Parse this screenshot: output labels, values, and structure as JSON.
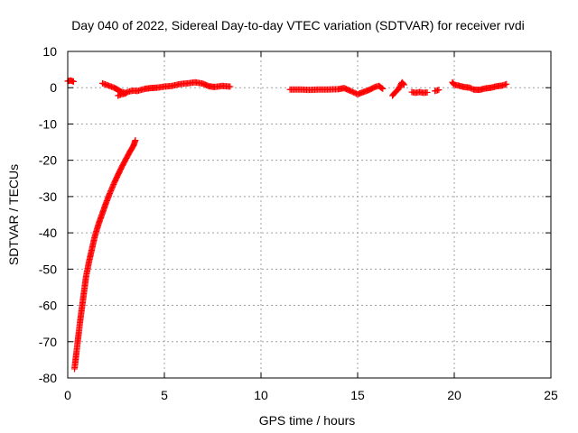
{
  "chart_data": {
    "type": "scatter",
    "title": "Day 040 of 2022, Sidereal Day-to-day VTEC variation (SDTVAR) for receiver rvdi",
    "xlabel": "GPS time / hours",
    "ylabel": "SDTVAR / TECUs",
    "xlim": [
      0,
      25
    ],
    "ylim": [
      -80,
      10
    ],
    "xticks": [
      0,
      5,
      10,
      15,
      20,
      25
    ],
    "yticks": [
      -80,
      -70,
      -60,
      -50,
      -40,
      -30,
      -20,
      -10,
      0,
      10
    ],
    "grid": true,
    "marker": "+",
    "series_color": "#ff0000",
    "segments": [
      {
        "x": [
          0.0,
          0.15,
          0.3
        ],
        "y": [
          1.8,
          2.0,
          1.7
        ]
      },
      {
        "x": [
          0.35,
          0.45,
          0.55,
          0.65,
          0.75,
          0.85,
          0.95,
          1.1,
          1.25,
          1.4,
          1.6,
          1.8,
          2.0,
          2.2,
          2.4,
          2.6,
          2.8,
          3.0,
          3.2,
          3.4,
          3.5
        ],
        "y": [
          -77.5,
          -73,
          -68.5,
          -64,
          -60,
          -56,
          -52,
          -48,
          -44.5,
          -41,
          -37.5,
          -34.5,
          -31.5,
          -28.8,
          -26.3,
          -24,
          -21.8,
          -19.8,
          -17.8,
          -16,
          -14.5
        ]
      },
      {
        "x": [
          1.8,
          2.0,
          2.2,
          2.4,
          2.6,
          2.8,
          3.0,
          3.2,
          3.4,
          3.6,
          3.8,
          4.0,
          4.3,
          4.6,
          5.0,
          5.4,
          5.8,
          6.2,
          6.6,
          7.0,
          7.3,
          7.6,
          8.0,
          8.4
        ],
        "y": [
          1.2,
          0.8,
          0.4,
          0.0,
          -0.6,
          -1.2,
          -1.4,
          -1.0,
          -0.8,
          -0.9,
          -0.6,
          -0.3,
          -0.1,
          0.0,
          0.3,
          0.5,
          1.0,
          1.2,
          1.5,
          1.1,
          0.4,
          0.2,
          0.5,
          0.3
        ]
      },
      {
        "x": [
          2.6,
          2.8,
          3.0
        ],
        "y": [
          -2.2,
          -1.8,
          -1.6
        ]
      },
      {
        "x": [
          11.5,
          12.0,
          12.5,
          13.0,
          13.5,
          14.0,
          14.3,
          14.6,
          15.0,
          15.3,
          15.6,
          15.9,
          16.1,
          16.3
        ],
        "y": [
          -0.5,
          -0.5,
          -0.6,
          -0.5,
          -0.5,
          -0.4,
          -0.1,
          -0.8,
          -1.8,
          -1.2,
          -0.6,
          0.2,
          0.5,
          -0.3
        ]
      },
      {
        "x": [
          16.8,
          16.95,
          17.1,
          17.3,
          17.4
        ],
        "y": [
          -2.2,
          -1.2,
          -0.5,
          1.5,
          0.8
        ]
      },
      {
        "x": [
          17.8,
          18.0,
          18.2,
          18.4,
          18.6
        ],
        "y": [
          -1.2,
          -1.4,
          -1.2,
          -1.4,
          -1.3
        ]
      },
      {
        "x": [
          19.0,
          19.2
        ],
        "y": [
          -0.9,
          -0.6
        ]
      },
      {
        "x": [
          19.9,
          20.0,
          20.2,
          20.5,
          20.8,
          21.0,
          21.3,
          21.6,
          21.9,
          22.2,
          22.5,
          22.7
        ],
        "y": [
          1.5,
          0.8,
          0.6,
          0.2,
          0.0,
          -0.5,
          -0.6,
          -0.2,
          0.0,
          0.4,
          0.6,
          1.0
        ]
      }
    ]
  }
}
